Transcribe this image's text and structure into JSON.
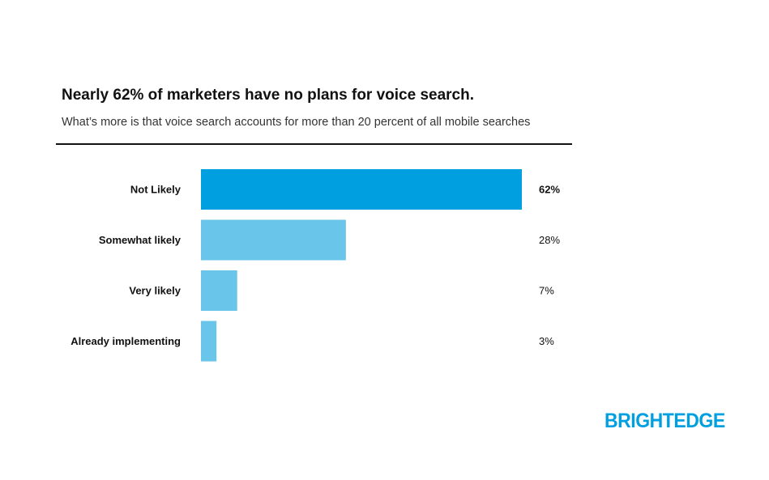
{
  "header": {
    "title": "Nearly 62% of marketers have no plans for voice search.",
    "subtitle": "What’s more is that voice search accounts for more than 20 percent of all mobile searches"
  },
  "logo": {
    "text": "BRIGHTEDGE",
    "color": "#009fdf"
  },
  "colors": {
    "primary_bar": "#009fdf",
    "secondary_bar": "#6ac5ea",
    "rule": "#111111"
  },
  "chart_data": {
    "type": "bar",
    "orientation": "horizontal",
    "title": "Nearly 62% of marketers have no plans for voice search.",
    "subtitle": "What’s more is that voice search accounts for more than 20 percent of all mobile searches",
    "xlabel": "",
    "ylabel": "",
    "categories": [
      "Not Likely",
      "Somewhat likely",
      "Very likely",
      "Already implementing"
    ],
    "values": [
      62,
      28,
      7,
      3
    ],
    "value_labels": [
      "62%",
      "28%",
      "7%",
      "3%"
    ],
    "xlim": [
      0,
      62
    ],
    "grid": false,
    "legend": "none"
  }
}
